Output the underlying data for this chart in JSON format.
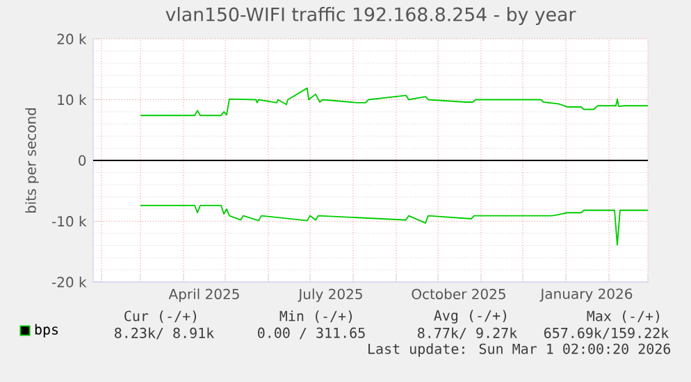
{
  "chart_data": {
    "type": "line",
    "title": "vlan150-WIFI traffic 192.168.8.254 - by year",
    "ylabel": "bits per second",
    "xlim": [
      "2025-01-26",
      "2026-03-01"
    ],
    "ylim": [
      -20000,
      20000
    ],
    "xticks": [
      {
        "value": "2025-02-01",
        "label": null
      },
      {
        "value": "2025-03-01",
        "label": null
      },
      {
        "value": "2025-04-01",
        "label": null
      },
      {
        "value": "2025-05-01",
        "label": null
      },
      {
        "value": "2025-06-01",
        "label": null
      },
      {
        "value": "2025-07-01",
        "label": null
      },
      {
        "value": "2025-08-01",
        "label": null
      },
      {
        "value": "2025-09-01",
        "label": null
      },
      {
        "value": "2025-10-01",
        "label": null
      },
      {
        "value": "2025-11-01",
        "label": null
      },
      {
        "value": "2025-12-01",
        "label": null
      },
      {
        "value": "2026-01-01",
        "label": null
      },
      {
        "value": "2026-02-01",
        "label": null
      },
      {
        "value": "2026-03-01",
        "label": null
      },
      {
        "value": "2025-04-16",
        "label": "April 2025"
      },
      {
        "value": "2025-07-16",
        "label": "July 2025"
      },
      {
        "value": "2025-10-16",
        "label": "October 2025"
      },
      {
        "value": "2026-01-16",
        "label": "January 2026"
      }
    ],
    "yticks": [
      {
        "value": -20000,
        "label": "-20 k"
      },
      {
        "value": -10000,
        "label": "-10 k"
      },
      {
        "value": 0,
        "label": "0"
      },
      {
        "value": 10000,
        "label": "10 k"
      },
      {
        "value": 20000,
        "label": "20 k"
      },
      {
        "value": -18000,
        "label": null
      },
      {
        "value": -16000,
        "label": null
      },
      {
        "value": -14000,
        "label": null
      },
      {
        "value": -12000,
        "label": null
      },
      {
        "value": -8000,
        "label": null
      },
      {
        "value": -6000,
        "label": null
      },
      {
        "value": -4000,
        "label": null
      },
      {
        "value": -2000,
        "label": null
      },
      {
        "value": 2000,
        "label": null
      },
      {
        "value": 4000,
        "label": null
      },
      {
        "value": 6000,
        "label": null
      },
      {
        "value": 8000,
        "label": null
      },
      {
        "value": 12000,
        "label": null
      },
      {
        "value": 14000,
        "label": null
      },
      {
        "value": 16000,
        "label": null
      },
      {
        "value": 18000,
        "label": null
      }
    ],
    "grid": true,
    "legend": "bottom",
    "marker": "none",
    "line_style": "solid",
    "ref_lines": [
      {
        "axis": "y",
        "value": 0,
        "color": "#000000"
      }
    ],
    "series": [
      {
        "name": "bps",
        "color": "#00cc00",
        "x": [
          "2025-03-01",
          "2025-04-09",
          "2025-04-11",
          "2025-04-13",
          "2025-04-28",
          "2025-04-30",
          "2025-05-02",
          "2025-05-04",
          "2025-05-23",
          "2025-05-24",
          "2025-05-25",
          "2025-06-07",
          "2025-06-08",
          "2025-06-14",
          "2025-06-15",
          "2025-06-29",
          "2025-06-30",
          "2025-07-05",
          "2025-07-08",
          "2025-07-10",
          "2025-08-04",
          "2025-08-10",
          "2025-08-12",
          "2025-09-08",
          "2025-09-10",
          "2025-09-22",
          "2025-09-24",
          "2025-10-21",
          "2025-10-26",
          "2025-10-28",
          "2025-12-14",
          "2025-12-16",
          "2025-12-27",
          "2026-01-02",
          "2026-01-12",
          "2026-01-14",
          "2026-01-21",
          "2026-01-24",
          "2026-02-06",
          "2026-02-07",
          "2026-02-08",
          "2026-02-12",
          "2026-03-01"
        ],
        "values": [
          7400,
          7400,
          8200,
          7400,
          7400,
          8000,
          7500,
          10100,
          10000,
          9500,
          10000,
          9500,
          10000,
          9200,
          10000,
          11900,
          10000,
          10900,
          9600,
          10000,
          9500,
          9500,
          10000,
          10700,
          10000,
          10500,
          10000,
          9600,
          9600,
          10000,
          10000,
          9600,
          9300,
          8800,
          8800,
          8400,
          8400,
          9000,
          9000,
          10100,
          8900,
          9000,
          9000
        ]
      },
      {
        "color": "#00cc00",
        "x": [
          "2025-03-01",
          "2025-04-09",
          "2025-04-11",
          "2025-04-13",
          "2025-04-28",
          "2025-04-30",
          "2025-05-02",
          "2025-05-04",
          "2025-05-12",
          "2025-05-14",
          "2025-05-25",
          "2025-05-27",
          "2025-06-29",
          "2025-07-01",
          "2025-07-05",
          "2025-07-07",
          "2025-09-08",
          "2025-09-10",
          "2025-09-22",
          "2025-09-24",
          "2025-10-25",
          "2025-10-27",
          "2025-12-22",
          "2025-12-27",
          "2026-01-02",
          "2026-01-12",
          "2026-01-14",
          "2026-02-05",
          "2026-02-07",
          "2026-02-09",
          "2026-03-01"
        ],
        "values": [
          -7400,
          -7400,
          -8600,
          -7400,
          -7400,
          -8800,
          -8000,
          -9100,
          -9800,
          -9100,
          -9900,
          -9100,
          -9900,
          -9100,
          -9800,
          -9100,
          -9800,
          -9100,
          -10300,
          -9100,
          -9600,
          -9100,
          -9100,
          -8900,
          -8600,
          -8600,
          -8200,
          -8200,
          -13900,
          -8200,
          -8200
        ]
      }
    ],
    "annotations": [
      "Cur (-/+)",
      "Min (-/+)",
      "Avg (-/+)",
      "Max (-/+)",
      "8.23k/  8.91k",
      "0.00 / 311.65",
      "8.77k/  9.27k",
      "657.69k/159.22k",
      "Last update: Sun Mar  1 02:00:20 2026"
    ]
  }
}
